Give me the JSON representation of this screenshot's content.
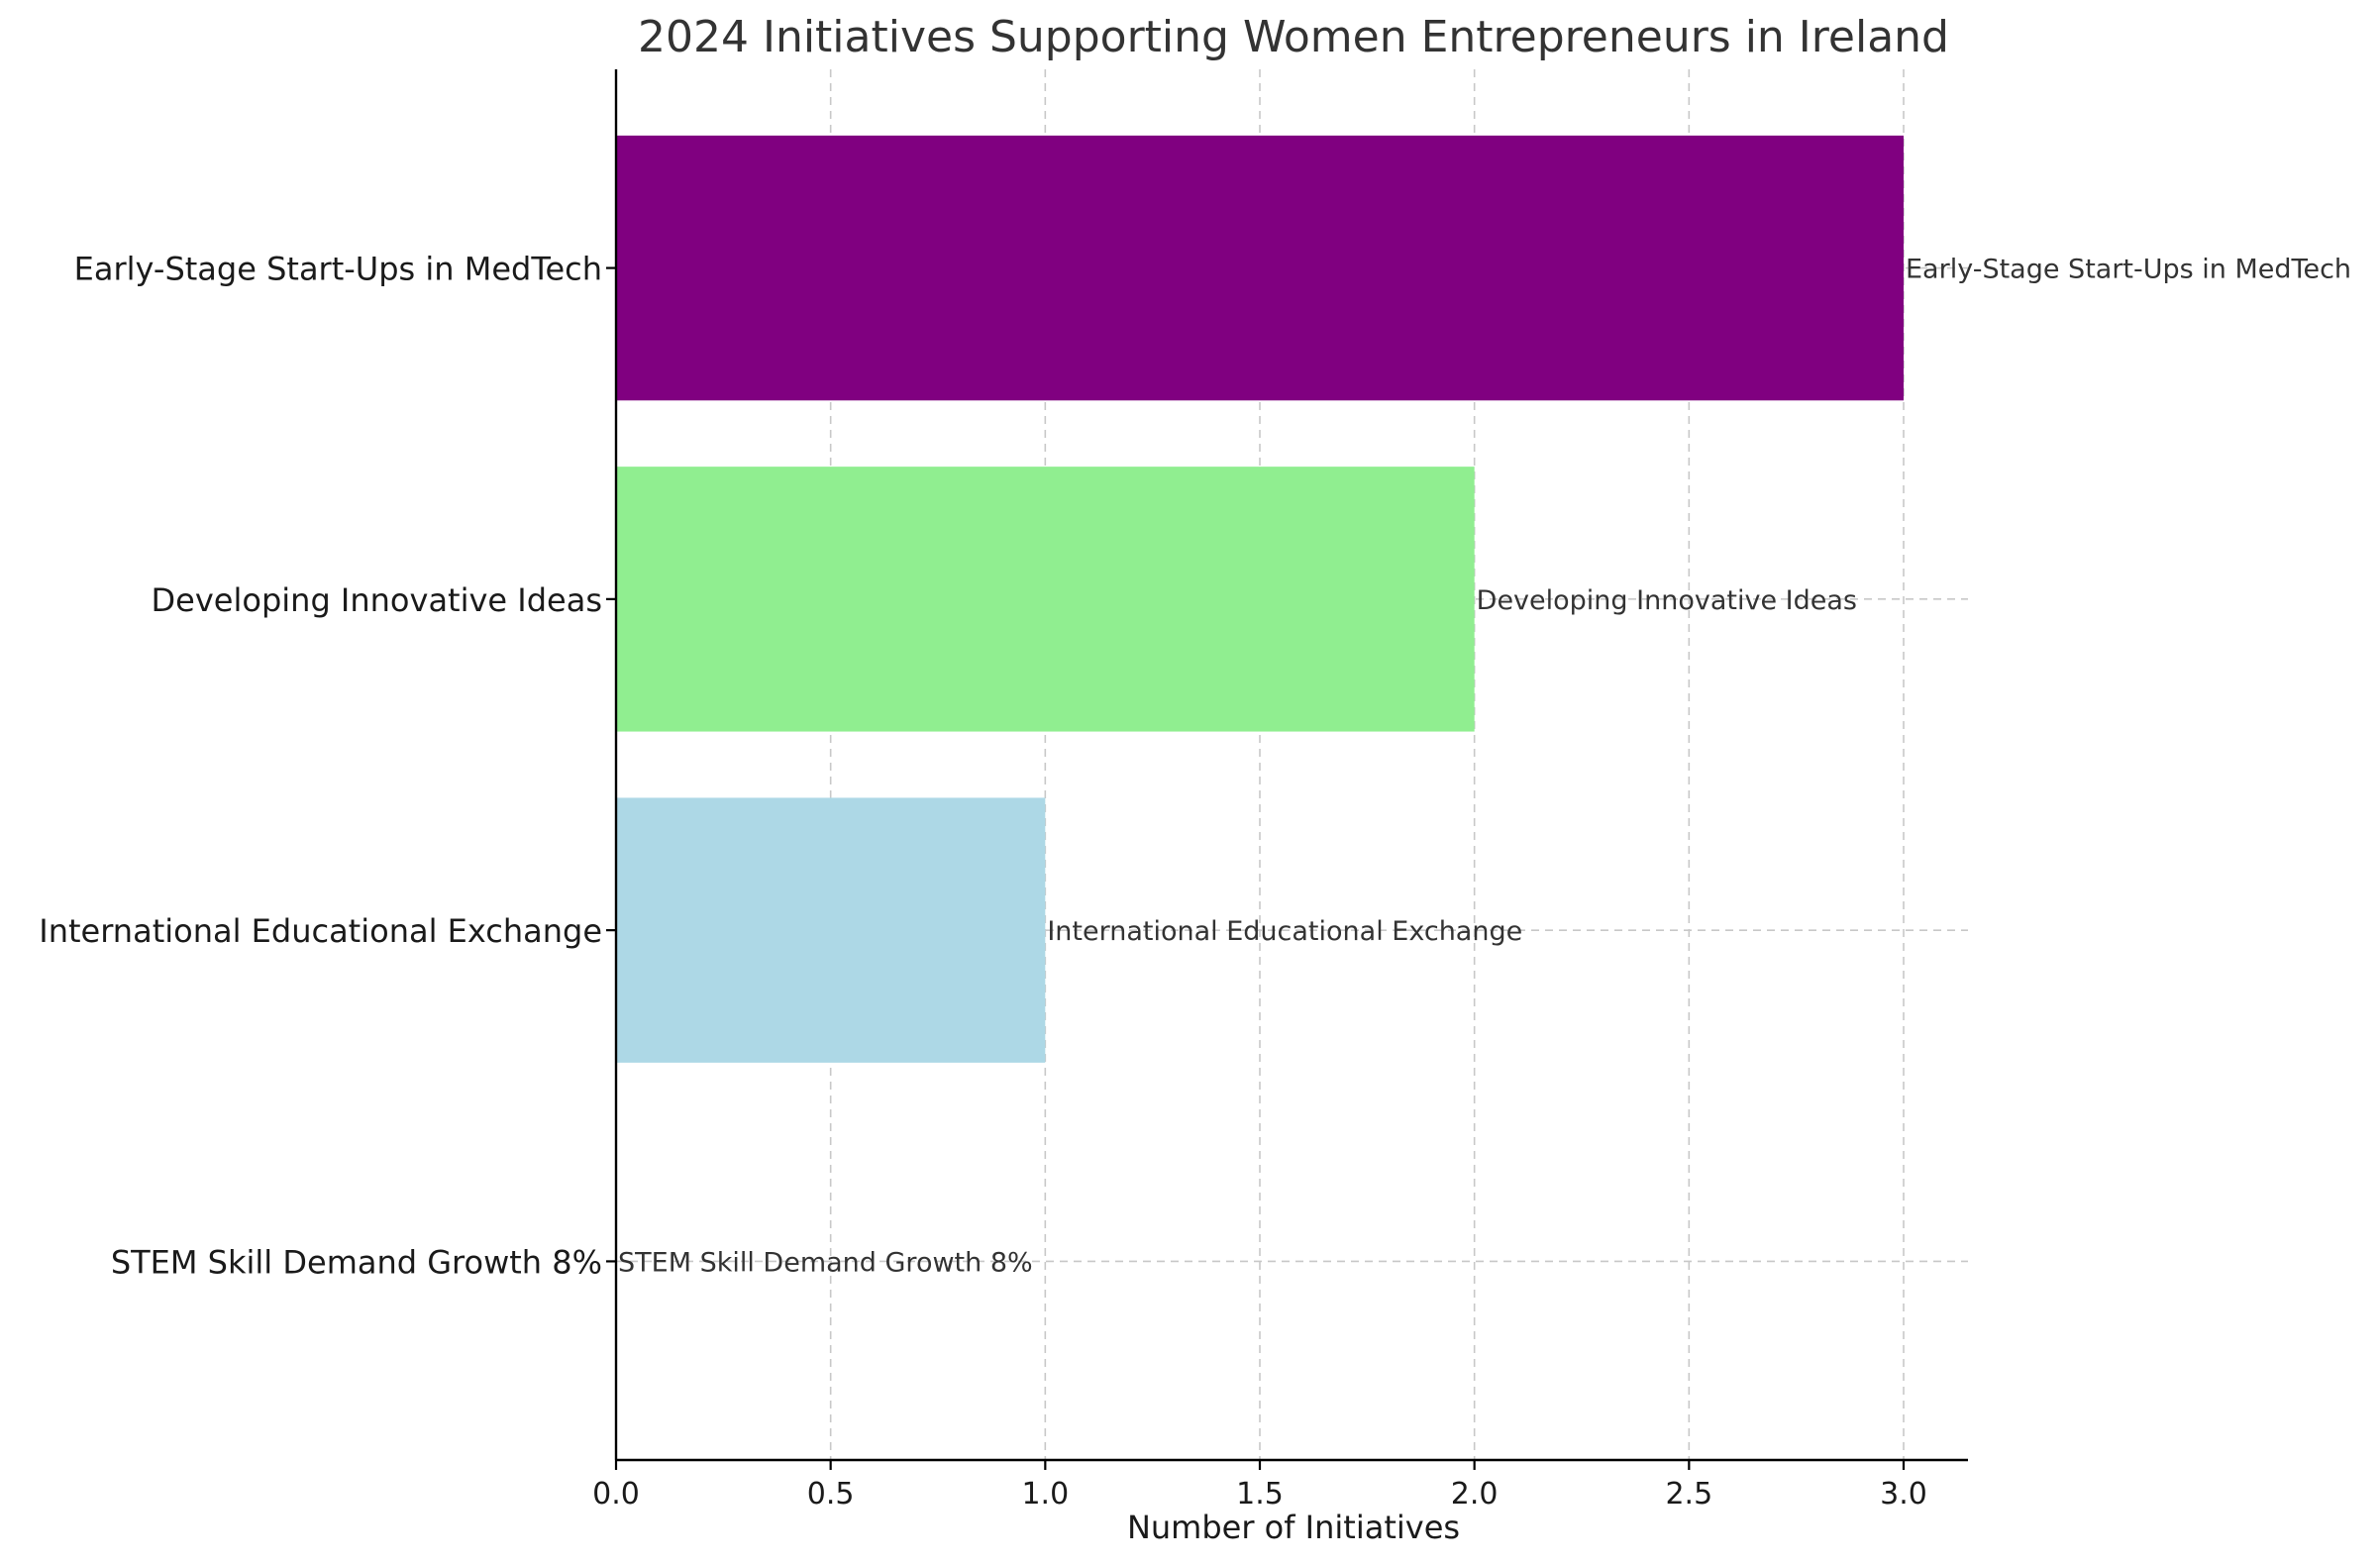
{
  "chart_data": {
    "type": "bar",
    "orientation": "horizontal",
    "title": "2024 Initiatives Supporting Women Entrepreneurs in Ireland",
    "xlabel": "Number of Initiatives",
    "ylabel": "",
    "xlim": [
      0,
      3.15
    ],
    "xticks": [
      "0.0",
      "0.5",
      "1.0",
      "1.5",
      "2.0",
      "2.5",
      "3.0"
    ],
    "grid": true,
    "categories": [
      "Early-Stage Start-Ups in MedTech",
      "Developing Innovative Ideas",
      "International Educational Exchange",
      "STEM Skill Demand Growth 8%"
    ],
    "values": [
      3,
      2,
      1,
      0
    ],
    "colors": [
      "#800080",
      "#90ee90",
      "#add8e6",
      "#ffffff"
    ],
    "data_labels": [
      "Early-Stage Start-Ups in MedTech",
      "Developing Innovative Ideas",
      "International Educational Exchange",
      "STEM Skill Demand Growth 8%"
    ]
  }
}
